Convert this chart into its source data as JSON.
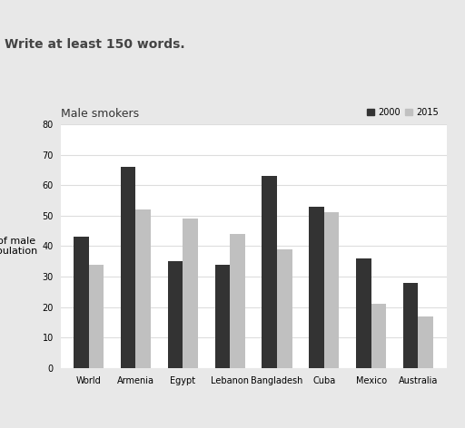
{
  "title": "Male smokers",
  "ylabel": "% of male\npopulation",
  "categories": [
    "World",
    "Armenia",
    "Egypt",
    "Lebanon",
    "Bangladesh",
    "Cuba",
    "Mexico",
    "Australia"
  ],
  "values_2000": [
    43,
    66,
    35,
    34,
    63,
    53,
    36,
    28
  ],
  "values_2015": [
    34,
    52,
    49,
    44,
    39,
    51,
    21,
    17
  ],
  "color_2000": "#333333",
  "color_2015": "#c0c0c0",
  "legend_labels": [
    "2000",
    "2015"
  ],
  "ylim": [
    0,
    80
  ],
  "yticks": [
    0,
    10,
    20,
    30,
    40,
    50,
    60,
    70,
    80
  ],
  "header_text": "Write at least 150 words.",
  "page_background": "#e8e8e8",
  "chart_background": "#ffffff"
}
